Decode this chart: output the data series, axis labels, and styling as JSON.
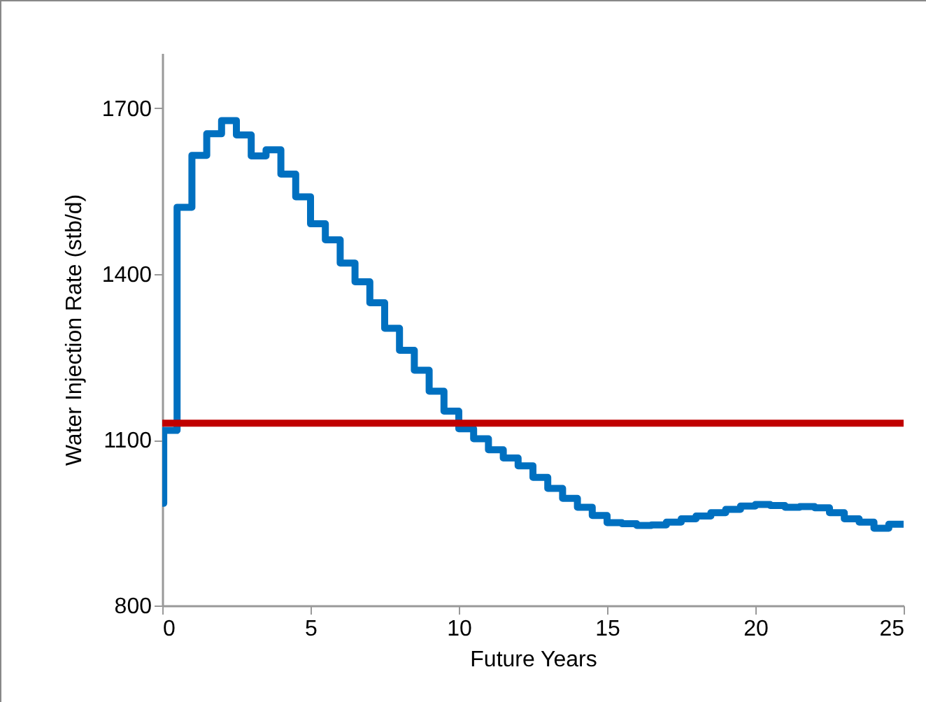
{
  "chart_data": {
    "type": "step",
    "xlabel": "Future Years",
    "ylabel": "Water Injection Rate (stb/d)",
    "x": [
      0,
      0.05,
      0.5,
      1,
      1.5,
      2,
      2.5,
      3,
      3.5,
      4,
      4.5,
      5,
      5.5,
      6,
      6.5,
      7,
      7.5,
      8,
      8.5,
      9,
      9.5,
      10,
      10.5,
      11,
      11.5,
      12,
      12.5,
      13,
      13.5,
      14,
      14.5,
      15,
      15.5,
      16,
      16.5,
      17,
      17.5,
      18,
      18.5,
      19,
      19.5,
      20,
      20.5,
      21,
      21.5,
      22,
      22.5,
      23,
      23.5,
      24,
      24.5,
      25
    ],
    "series": [
      {
        "color": "#0070c0",
        "values": [
          985,
          1117,
          1521,
          1615,
          1654,
          1678,
          1652,
          1614,
          1625,
          1581,
          1540,
          1491,
          1462,
          1420,
          1386,
          1348,
          1302,
          1262,
          1226,
          1188,
          1152,
          1120,
          1102,
          1082,
          1067,
          1053,
          1032,
          1012,
          994,
          978,
          963,
          950,
          948,
          945,
          946,
          951,
          957,
          962,
          968,
          974,
          980,
          983,
          981,
          978,
          979,
          977,
          968,
          957,
          951,
          940,
          947,
          947
        ]
      }
    ],
    "ref_lines": [
      {
        "axis": "y",
        "value": 1130,
        "color": "#c00000"
      }
    ],
    "xlim": [
      0,
      25
    ],
    "xticks": [
      0,
      5,
      10,
      15,
      20,
      25
    ],
    "ylim": [
      800,
      1800
    ],
    "yticks": [
      800,
      1100,
      1400,
      1700
    ],
    "grid": false,
    "line_style": "solid"
  }
}
